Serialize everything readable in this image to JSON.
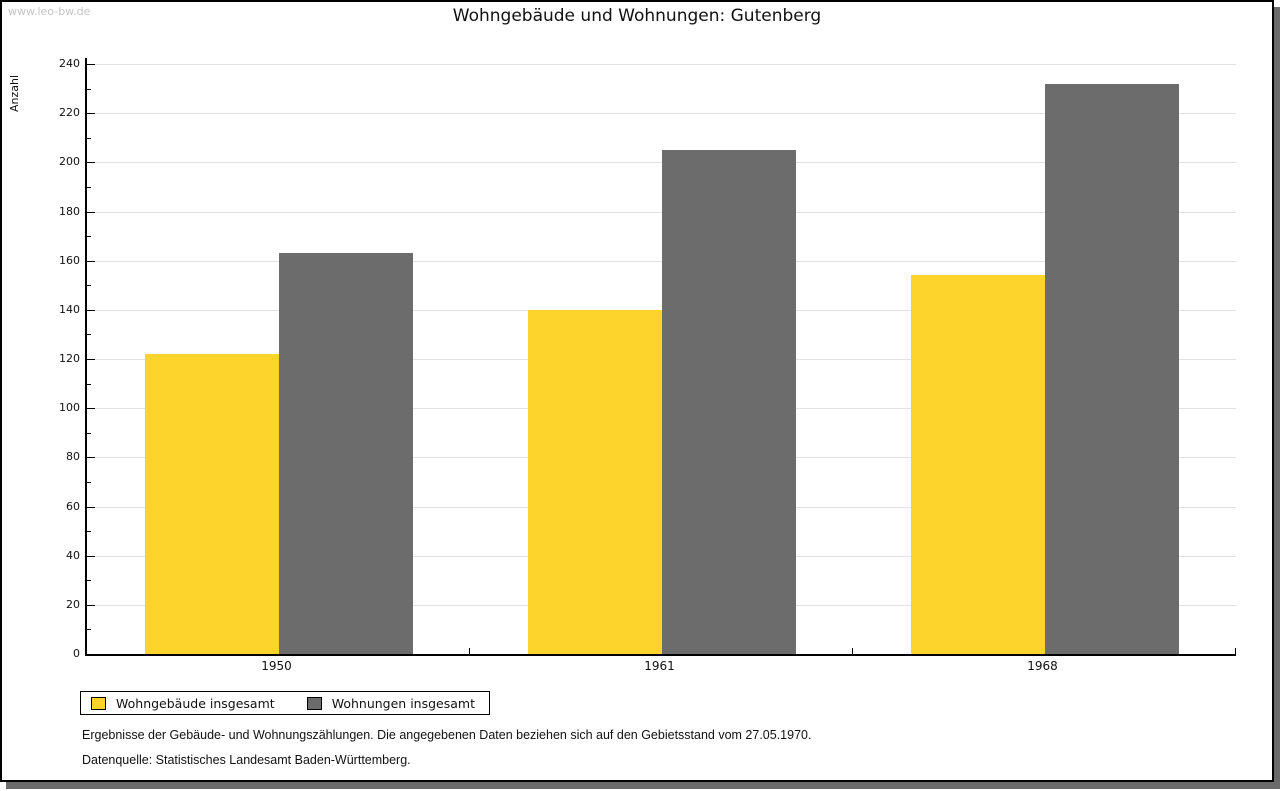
{
  "page": {
    "watermark": "www.leo-bw.de"
  },
  "chart_data": {
    "type": "bar",
    "title": "Wohngebäude und Wohnungen: Gutenberg",
    "xlabel": "",
    "ylabel": "Anzahl",
    "categories": [
      "1950",
      "1961",
      "1968"
    ],
    "series": [
      {
        "name": "Wohngebäude insgesamt",
        "color": "#FCD42B",
        "values": [
          122,
          140,
          154
        ]
      },
      {
        "name": "Wohnungen insgesamt",
        "color": "#6C6C6C",
        "values": [
          163,
          205,
          232
        ]
      }
    ],
    "ylim": [
      0,
      240
    ],
    "ytick_major": 20,
    "ytick_minor": 10,
    "grid": true,
    "legend_position": "bottom-left"
  },
  "footer": {
    "line1": "Ergebnisse der Gebäude- und Wohnungszählungen. Die angegebenen Daten beziehen sich auf den Gebietsstand vom 27.05.1970.",
    "line2": "Datenquelle: Statistisches Landesamt Baden-Württemberg."
  },
  "colors": {
    "grid": "#E2E2E2",
    "axis": "#000000",
    "shadow": "#6B6B6B",
    "watermark": "#C4C4C4",
    "background": "#FFFFFF"
  }
}
